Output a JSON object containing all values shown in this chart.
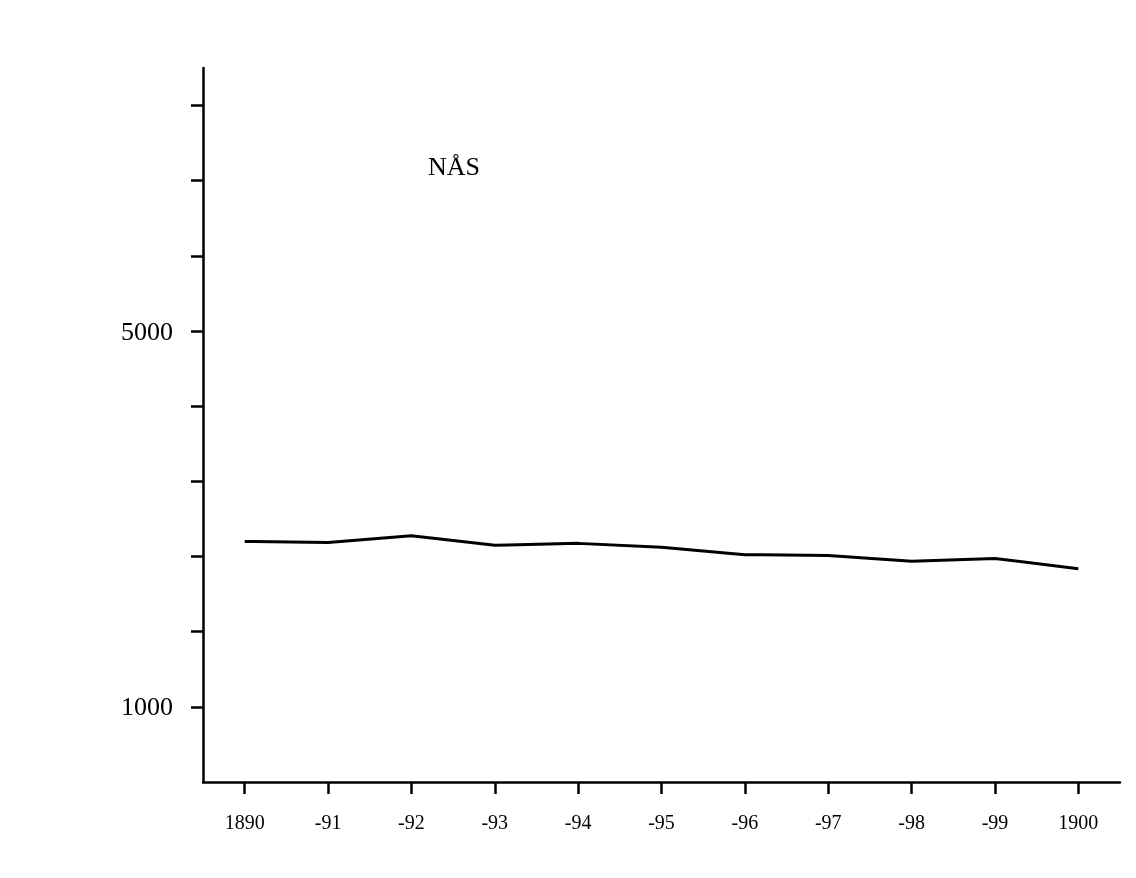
{
  "chart_data": {
    "type": "line",
    "title": "NÅS",
    "categories": [
      "1890",
      "-91",
      "-92",
      "-93",
      "-94",
      "-95",
      "-96",
      "-97",
      "-98",
      "-99",
      "1900"
    ],
    "series": [
      {
        "color": "#000000",
        "values": [
          2760,
          2750,
          2820,
          2720,
          2740,
          2700,
          2620,
          2610,
          2550,
          2580,
          2470
        ]
      }
    ],
    "ylim": [
      200,
      7800
    ],
    "yticks": [
      1000,
      {
        "value": 1800,
        "label": null
      },
      {
        "value": 2600,
        "label": null
      },
      {
        "value": 3400,
        "label": null
      },
      {
        "value": 4200,
        "label": null
      },
      5000,
      {
        "value": 5800,
        "label": null
      },
      {
        "value": 6600,
        "label": null
      },
      {
        "value": 7400,
        "label": null
      }
    ],
    "grid": false,
    "marker": "none"
  }
}
